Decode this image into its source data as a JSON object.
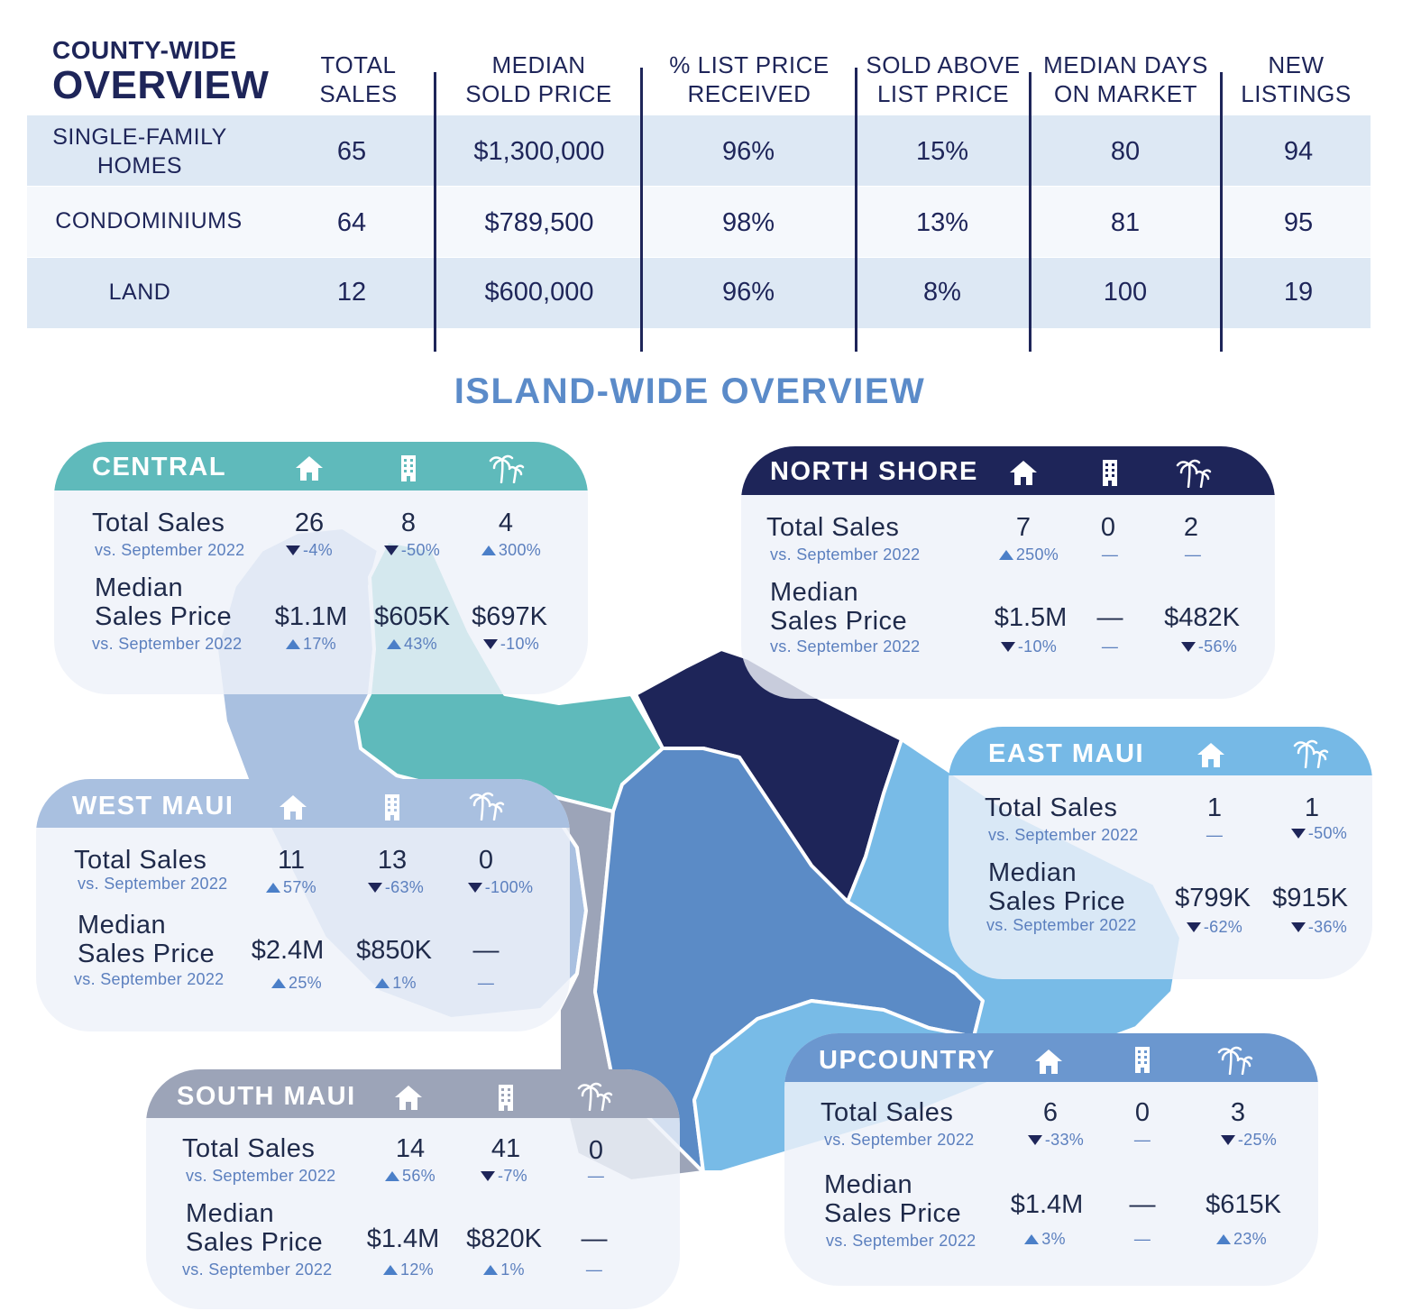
{
  "county": {
    "title_line1": "COUNTY-WIDE",
    "title_line2": "OVERVIEW",
    "headers": [
      {
        "l1": "TOTAL",
        "l2": "SALES"
      },
      {
        "l1": "MEDIAN",
        "l2": "SOLD PRICE"
      },
      {
        "l1": "% LIST PRICE",
        "l2": "RECEIVED"
      },
      {
        "l1": "SOLD ABOVE",
        "l2": "LIST PRICE"
      },
      {
        "l1": "MEDIAN DAYS",
        "l2": "ON MARKET"
      },
      {
        "l1": "NEW",
        "l2": "LISTINGS"
      }
    ],
    "rows": [
      {
        "label_l1": "SINGLE-FAMILY",
        "label_l2": "HOMES",
        "cells": [
          "65",
          "$1,300,000",
          "96%",
          "15%",
          "80",
          "94"
        ]
      },
      {
        "label_l1": "CONDOMINIUMS",
        "label_l2": "",
        "cells": [
          "64",
          "$789,500",
          "98%",
          "13%",
          "81",
          "95"
        ]
      },
      {
        "label_l1": "LAND",
        "label_l2": "",
        "cells": [
          "12",
          "$600,000",
          "96%",
          "8%",
          "100",
          "19"
        ]
      }
    ]
  },
  "island_title": "ISLAND-WIDE OVERVIEW",
  "labels": {
    "total_sales": "Total Sales",
    "vs": "vs. September 2022",
    "median_l1": "Median",
    "median_l2": "Sales Price"
  },
  "colors": {
    "central": "#5fbabb",
    "north": "#1e2559",
    "east": "#76b9e6",
    "west": "#a9c0e0",
    "south": "#9ca4b8",
    "upcountry": "#6b97cf"
  },
  "regions": {
    "central": {
      "name": "CENTRAL",
      "sales": [
        "26",
        "8",
        "4"
      ],
      "sales_chg": [
        "-4%",
        "-50%",
        "300%"
      ],
      "price": [
        "$1.1M",
        "$605K",
        "$697K"
      ],
      "price_chg": [
        "17%",
        "43%",
        "-10%"
      ]
    },
    "north": {
      "name": "NORTH SHORE",
      "sales": [
        "7",
        "0",
        "2"
      ],
      "sales_chg": [
        "250%",
        "—",
        "—"
      ],
      "price": [
        "$1.5M",
        "—",
        "$482K"
      ],
      "price_chg": [
        "-10%",
        "—",
        "-56%"
      ]
    },
    "east": {
      "name": "EAST MAUI",
      "sales": [
        "1",
        "1"
      ],
      "sales_chg": [
        "—",
        "-50%"
      ],
      "price": [
        "$799K",
        "$915K"
      ],
      "price_chg": [
        "-62%",
        "-36%"
      ]
    },
    "west": {
      "name": "WEST MAUI",
      "sales": [
        "11",
        "13",
        "0"
      ],
      "sales_chg": [
        "57%",
        "-63%",
        "-100%"
      ],
      "price": [
        "$2.4M",
        "$850K",
        "—"
      ],
      "price_chg": [
        "25%",
        "1%",
        "—"
      ]
    },
    "south": {
      "name": "SOUTH MAUI",
      "sales": [
        "14",
        "41",
        "0"
      ],
      "sales_chg": [
        "56%",
        "-7%",
        "—"
      ],
      "price": [
        "$1.4M",
        "$820K",
        "—"
      ],
      "price_chg": [
        "12%",
        "1%",
        "—"
      ]
    },
    "upcountry": {
      "name": "UPCOUNTRY",
      "sales": [
        "6",
        "0",
        "3"
      ],
      "sales_chg": [
        "-33%",
        "—",
        "-25%"
      ],
      "price": [
        "$1.4M",
        "—",
        "$615K"
      ],
      "price_chg": [
        "3%",
        "—",
        "23%"
      ]
    }
  },
  "icons": [
    "house-icon",
    "condo-building-icon",
    "palm-tree-land-icon"
  ]
}
